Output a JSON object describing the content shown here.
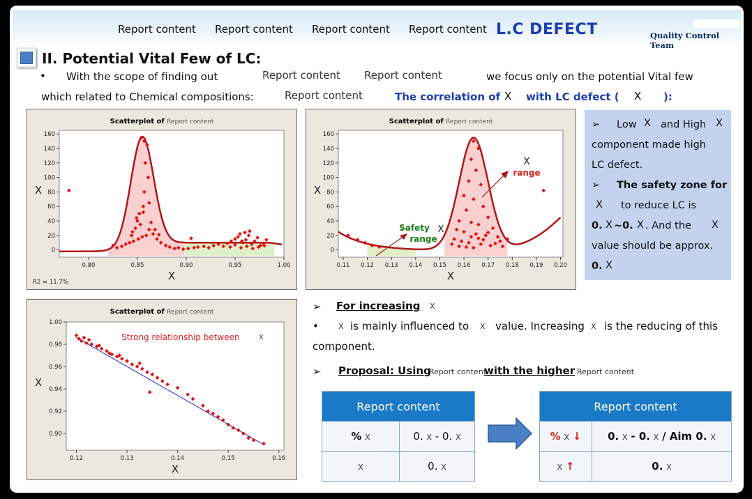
{
  "header": {
    "nav": [
      "Report content",
      "Report content",
      "Report content",
      "Report content"
    ],
    "title": "L.C DEFECT",
    "team": "Quality Control Team"
  },
  "section": {
    "title": "II. Potential Vital Few of LC:",
    "bullet": "•",
    "line1_a": "With the scope of finding out",
    "line1_b": "Report content",
    "line1_c": "Report content",
    "line1_d": "we focus only on the potential Vital few",
    "line2_a": "which related to Chemical compositions:",
    "line2_b": "Report content",
    "line2_c": "The correlation of",
    "line2_x": "X",
    "line2_d": "with LC defect (",
    "line2_x2": "X",
    "line2_e": "):"
  },
  "notes": {
    "l1a": "➢",
    "l1b": "Low",
    "l1x": "X",
    "l1c": "and High",
    "l1x2": "X",
    "l2": "component made   high",
    "l3": "LC defect.",
    "l4a": "➢",
    "l4b": "The safety zone for",
    "l5x": "X",
    "l5b": "to   reduce   LC   is",
    "l6a": "0.",
    "l6x": "X",
    "l6b": "~0.",
    "l6x2": "X",
    "l6c": ".  And  the",
    "l6x3": "X",
    "l7": "value  should  be  approx.",
    "l8a": "0.",
    "l8x": "X"
  },
  "lower": {
    "h1a": "➢",
    "h1b": "For increasing",
    "h1x": "X",
    "b1a": "•",
    "b1x": "X",
    "b1b": "is mainly influenced to",
    "b1x2": "X",
    "b1c": "value. Increasing",
    "b1x3": "X",
    "b1d": "is the reducing of this",
    "b2": "component.",
    "p1a": "➢",
    "p1b": "Proposal: Using",
    "p1c": "Report content",
    "p1d": "with the higher",
    "p1e": "Report content"
  },
  "table_left": {
    "header": "Report content",
    "r1c1a": "%",
    "r1c1x": "X",
    "r1c2a": "0.",
    "r1c2x": "X",
    "r1c2b": "- 0.",
    "r1c2x2": "X",
    "r2c1x": "X",
    "r2c2a": "0.",
    "r2c2x": "X"
  },
  "table_right": {
    "header": "Report content",
    "r1c1a": "%",
    "r1c1x": "X",
    "r1c1arrow": "↓",
    "r1c2a": "0.",
    "r1c2x": "X",
    "r1c2b": "- 0.",
    "r1c2x2": "X",
    "r1c2c": "/ Aim 0.",
    "r1c2x3": "X",
    "r2c1x": "X",
    "r2c1arrow": "↑",
    "r2c2a": "0.",
    "r2c2x": "X"
  },
  "colors": {
    "accent_blue": "#1e3fae",
    "table_header": "#1a7ac8",
    "curve_red": "#b01818",
    "point_red": "#e01010",
    "safe_green": "#1a7f1a",
    "note_bg": "#c3d3ee"
  },
  "chart_data": [
    {
      "type": "scatter",
      "title": "Scatterplot of",
      "subtitle": "Report content",
      "xlabel": "X",
      "ylabel": "X",
      "xlim": [
        0.77,
        1.0
      ],
      "ylim": [
        -10,
        165
      ],
      "xticks": [
        "0.80",
        "0.85",
        "0.90",
        "0.95",
        "1.00"
      ],
      "yticks": [
        "0",
        "20",
        "40",
        "60",
        "80",
        "100",
        "120",
        "140",
        "160"
      ],
      "annotation": "R2 = 11.7%",
      "points": [
        [
          0.78,
          82
        ],
        [
          0.857,
          150
        ],
        [
          0.86,
          145
        ],
        [
          0.854,
          155
        ],
        [
          0.858,
          120
        ],
        [
          0.861,
          100
        ],
        [
          0.857,
          80
        ],
        [
          0.856,
          60
        ],
        [
          0.852,
          50
        ],
        [
          0.85,
          40
        ],
        [
          0.853,
          35
        ],
        [
          0.848,
          30
        ],
        [
          0.845,
          25
        ],
        [
          0.862,
          28
        ],
        [
          0.866,
          22
        ],
        [
          0.859,
          20
        ],
        [
          0.855,
          18
        ],
        [
          0.851,
          15
        ],
        [
          0.846,
          12
        ],
        [
          0.842,
          10
        ],
        [
          0.838,
          8
        ],
        [
          0.834,
          5
        ],
        [
          0.829,
          3
        ],
        [
          0.825,
          6
        ],
        [
          0.87,
          15
        ],
        [
          0.874,
          10
        ],
        [
          0.879,
          6
        ],
        [
          0.883,
          4
        ],
        [
          0.888,
          2
        ],
        [
          0.892,
          3
        ],
        [
          0.897,
          1
        ],
        [
          0.902,
          2
        ],
        [
          0.908,
          3
        ],
        [
          0.912,
          4
        ],
        [
          0.918,
          5
        ],
        [
          0.923,
          3
        ],
        [
          0.928,
          6
        ],
        [
          0.933,
          8
        ],
        [
          0.938,
          5
        ],
        [
          0.942,
          9
        ],
        [
          0.946,
          12
        ],
        [
          0.95,
          15
        ],
        [
          0.953,
          18
        ],
        [
          0.955,
          22
        ],
        [
          0.958,
          10
        ],
        [
          0.961,
          14
        ],
        [
          0.964,
          20
        ],
        [
          0.967,
          8
        ],
        [
          0.97,
          12
        ],
        [
          0.973,
          17
        ],
        [
          0.976,
          6
        ],
        [
          0.979,
          9
        ],
        [
          0.982,
          14
        ],
        [
          0.945,
          4
        ],
        [
          0.95,
          7
        ],
        [
          0.956,
          3
        ],
        [
          0.962,
          5
        ],
        [
          0.968,
          2
        ],
        [
          0.974,
          4
        ],
        [
          0.98,
          6
        ],
        [
          0.864,
          38
        ],
        [
          0.849,
          44
        ],
        [
          0.856,
          52
        ],
        [
          0.862,
          65
        ],
        [
          0.868,
          28
        ],
        [
          0.844,
          20
        ],
        [
          0.872,
          21
        ],
        [
          0.905,
          16
        ],
        [
          0.96,
          24
        ],
        [
          0.965,
          26
        ],
        [
          0.957,
          12
        ]
      ],
      "fit_curve": "peak at 0.855 (~160), plateau ~12 from 0.90 to 0.99"
    },
    {
      "type": "scatter",
      "title": "Scatterplot of",
      "subtitle": "Report content",
      "xlabel": "X",
      "ylabel": "X",
      "xlim": [
        0.108,
        0.201
      ],
      "ylim": [
        -10,
        165
      ],
      "xticks": [
        "0.11",
        "0.12",
        "0.13",
        "0.14",
        "0.15",
        "0.16",
        "0.17",
        "0.18",
        "0.19",
        "0.20"
      ],
      "yticks": [
        "0",
        "20",
        "40",
        "60",
        "80",
        "100",
        "120",
        "140",
        "160"
      ],
      "annotations": [
        "Safety range",
        "X",
        "X",
        "range"
      ],
      "points": [
        [
          0.112,
          20
        ],
        [
          0.116,
          14
        ],
        [
          0.119,
          10
        ],
        [
          0.122,
          6
        ],
        [
          0.125,
          4
        ],
        [
          0.164,
          150
        ],
        [
          0.166,
          140
        ],
        [
          0.163,
          125
        ],
        [
          0.165,
          110
        ],
        [
          0.162,
          95
        ],
        [
          0.167,
          90
        ],
        [
          0.16,
          75
        ],
        [
          0.164,
          70
        ],
        [
          0.168,
          60
        ],
        [
          0.161,
          55
        ],
        [
          0.17,
          45
        ],
        [
          0.158,
          40
        ],
        [
          0.163,
          38
        ],
        [
          0.166,
          35
        ],
        [
          0.172,
          30
        ],
        [
          0.157,
          28
        ],
        [
          0.16,
          25
        ],
        [
          0.165,
          22
        ],
        [
          0.169,
          20
        ],
        [
          0.174,
          18
        ],
        [
          0.156,
          15
        ],
        [
          0.159,
          12
        ],
        [
          0.162,
          10
        ],
        [
          0.167,
          8
        ],
        [
          0.171,
          6
        ],
        [
          0.175,
          12
        ],
        [
          0.178,
          15
        ],
        [
          0.155,
          8
        ],
        [
          0.158,
          5
        ],
        [
          0.161,
          4
        ],
        [
          0.164,
          3
        ],
        [
          0.168,
          14
        ],
        [
          0.173,
          9
        ],
        [
          0.176,
          5
        ],
        [
          0.193,
          82
        ],
        [
          0.163,
          18
        ],
        [
          0.166,
          16
        ],
        [
          0.17,
          24
        ]
      ],
      "fit_curve": "declining to ~5 near 0.125, peak ~160 at 0.164, rising again after 0.18"
    },
    {
      "type": "scatter",
      "title": "Scatterplot of",
      "subtitle": "Report content",
      "xlabel": "X",
      "ylabel": "X",
      "xlim": [
        0.118,
        0.161
      ],
      "ylim": [
        0.885,
        1.0
      ],
      "xticks": [
        "0.12",
        "0.13",
        "0.14",
        "0.15",
        "0.16"
      ],
      "yticks": [
        "1.00",
        "0.98",
        "0.96",
        "0.94",
        "0.92",
        "0.90"
      ],
      "annotation": "Strong relationship between",
      "annotation_x": "X",
      "points": [
        [
          0.12,
          0.988
        ],
        [
          0.1205,
          0.985
        ],
        [
          0.121,
          0.983
        ],
        [
          0.1215,
          0.986
        ],
        [
          0.122,
          0.981
        ],
        [
          0.123,
          0.98
        ],
        [
          0.124,
          0.978
        ],
        [
          0.125,
          0.976
        ],
        [
          0.126,
          0.974
        ],
        [
          0.1265,
          0.972
        ],
        [
          0.127,
          0.971
        ],
        [
          0.128,
          0.969
        ],
        [
          0.129,
          0.967
        ],
        [
          0.13,
          0.965
        ],
        [
          0.131,
          0.962
        ],
        [
          0.132,
          0.96
        ],
        [
          0.133,
          0.958
        ],
        [
          0.134,
          0.955
        ],
        [
          0.135,
          0.953
        ],
        [
          0.136,
          0.95
        ],
        [
          0.137,
          0.947
        ],
        [
          0.138,
          0.944
        ],
        [
          0.1345,
          0.937
        ],
        [
          0.14,
          0.941
        ],
        [
          0.142,
          0.935
        ],
        [
          0.143,
          0.931
        ],
        [
          0.145,
          0.925
        ],
        [
          0.146,
          0.92
        ],
        [
          0.147,
          0.918
        ],
        [
          0.148,
          0.915
        ],
        [
          0.149,
          0.912
        ],
        [
          0.15,
          0.908
        ],
        [
          0.151,
          0.905
        ],
        [
          0.152,
          0.903
        ],
        [
          0.153,
          0.9
        ],
        [
          0.154,
          0.896
        ],
        [
          0.155,
          0.894
        ],
        [
          0.157,
          0.891
        ],
        [
          0.1225,
          0.984
        ],
        [
          0.1245,
          0.979
        ],
        [
          0.1285,
          0.97
        ],
        [
          0.1325,
          0.963
        ]
      ],
      "fit_line": [
        [
          0.12,
          0.986
        ],
        [
          0.157,
          0.89
        ]
      ]
    }
  ]
}
